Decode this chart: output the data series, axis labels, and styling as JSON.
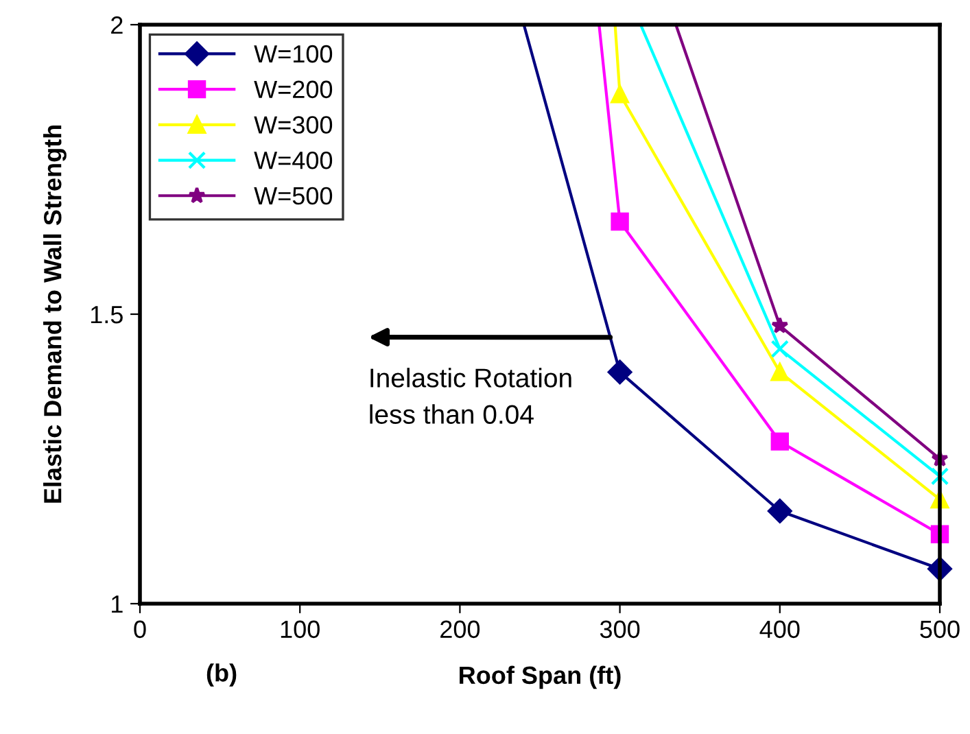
{
  "chart_data": {
    "type": "line",
    "xlabel": "Roof Span (ft)",
    "ylabel": "Elastic Demand to Wall Strength",
    "series": [
      {
        "name": "W=100",
        "color": "#000080",
        "marker": "diamond",
        "x": [
          240,
          300,
          400,
          500
        ],
        "values": [
          2,
          1.4,
          1.16,
          1.06
        ]
      },
      {
        "name": "W=200",
        "color": "#ff00ff",
        "marker": "square",
        "x": [
          287,
          300,
          400,
          500
        ],
        "values": [
          2,
          1.66,
          1.28,
          1.12
        ]
      },
      {
        "name": "W=300",
        "color": "#ffff00",
        "marker": "triangle",
        "x": [
          297,
          300,
          400,
          500
        ],
        "values": [
          2,
          1.88,
          1.4,
          1.18
        ]
      },
      {
        "name": "W=400",
        "color": "#00ffff",
        "marker": "cross",
        "x": [
          313,
          400,
          500
        ],
        "values": [
          2,
          1.44,
          1.22
        ]
      },
      {
        "name": "W=500",
        "color": "#800080",
        "marker": "star",
        "x": [
          335,
          400,
          500
        ],
        "values": [
          2,
          1.48,
          1.25
        ]
      }
    ],
    "xlim": [
      0,
      500
    ],
    "xticks": [
      0,
      100,
      200,
      300,
      400,
      500
    ],
    "ylim": [
      1,
      2
    ],
    "yticks": [
      1,
      1.5,
      2
    ],
    "annotations": [
      {
        "text": "Inelastic Rotation\nless than 0.04",
        "x": 294,
        "y": 1.46
      },
      "(b)"
    ],
    "legend": "top left",
    "grid": false,
    "line_style": "solid"
  }
}
